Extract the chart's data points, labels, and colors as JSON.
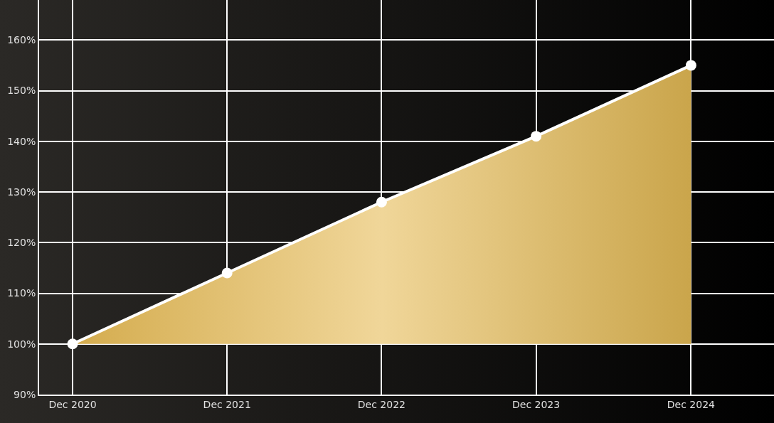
{
  "chart_data": {
    "type": "area",
    "x": [
      "2020-12",
      "2021-12",
      "2022-12",
      "2023-12",
      "2024-12"
    ],
    "series": [
      {
        "color": "#e6bb55",
        "values": [
          100,
          114,
          128,
          141,
          155
        ]
      }
    ],
    "xlim": [
      "2020-09-13",
      "2025-06-15"
    ],
    "xticks": [
      {
        "value": "2020-12",
        "label": "Dec 2020"
      },
      {
        "value": "2021-12",
        "label": "Dec 2021"
      },
      {
        "value": "2022-12",
        "label": "Dec 2022"
      },
      {
        "value": "2023-12",
        "label": "Dec 2023"
      },
      {
        "value": "2024-12",
        "label": "Dec 2024"
      }
    ],
    "ylim": [
      90,
      167.9
    ],
    "yticks": [
      {
        "value": 90,
        "label": "90%"
      },
      {
        "value": 100,
        "label": "100%"
      },
      {
        "value": 110,
        "label": "110%"
      },
      {
        "value": 120,
        "label": "120%"
      },
      {
        "value": 130,
        "label": "130%"
      },
      {
        "value": 140,
        "label": "140%"
      },
      {
        "value": 150,
        "label": "150%"
      },
      {
        "value": 160,
        "label": "160%"
      }
    ],
    "grid": true,
    "marker": "circle",
    "line_style": "solid"
  }
}
